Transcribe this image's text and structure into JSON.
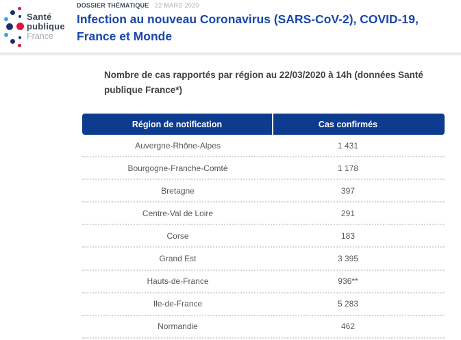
{
  "theme": {
    "header_blue": "#0d3c8e",
    "title_blue": "#1a47ab",
    "kicker_dark": "#3e4a5a",
    "date_gray": "#a8acb2",
    "heading_gray": "#3f4043",
    "row_text": "#55585c",
    "dotted": "#d6d6d6",
    "logo_navy": "#1c2e6e",
    "logo_lightblue": "#38a8de",
    "logo_red": "#e4123f",
    "logo_text": "#3d4757",
    "logo_france": "#a9aeb5"
  },
  "brand": {
    "name_line1": "Santé",
    "name_line2": "publique",
    "name_line3": "France"
  },
  "header": {
    "kicker": "DOSSIER THÉMATIQUE",
    "date": "22 MARS 2020",
    "title": "Infection au nouveau Coronavirus (SARS-CoV-2), COVID-19, France et Monde"
  },
  "main": {
    "heading": "Nombre de cas rapportés par région au 22/03/2020 à 14h (données Santé publique France*)"
  },
  "table": {
    "columns": [
      "Région de notification",
      "Cas confirmés"
    ],
    "rows": [
      {
        "region": "Auvergne-Rhône-Alpes",
        "cases": "1 431"
      },
      {
        "region": "Bourgogne-Franche-Comté",
        "cases": "1 178"
      },
      {
        "region": "Bretagne",
        "cases": "397"
      },
      {
        "region": "Centre-Val de Loire",
        "cases": "291"
      },
      {
        "region": "Corse",
        "cases": "183"
      },
      {
        "region": "Grand Est",
        "cases": "3 395"
      },
      {
        "region": "Hauts-de-France",
        "cases": "936**"
      },
      {
        "region": "Ile-de-France",
        "cases": "5 283"
      },
      {
        "region": "Normandie",
        "cases": "462"
      }
    ]
  }
}
